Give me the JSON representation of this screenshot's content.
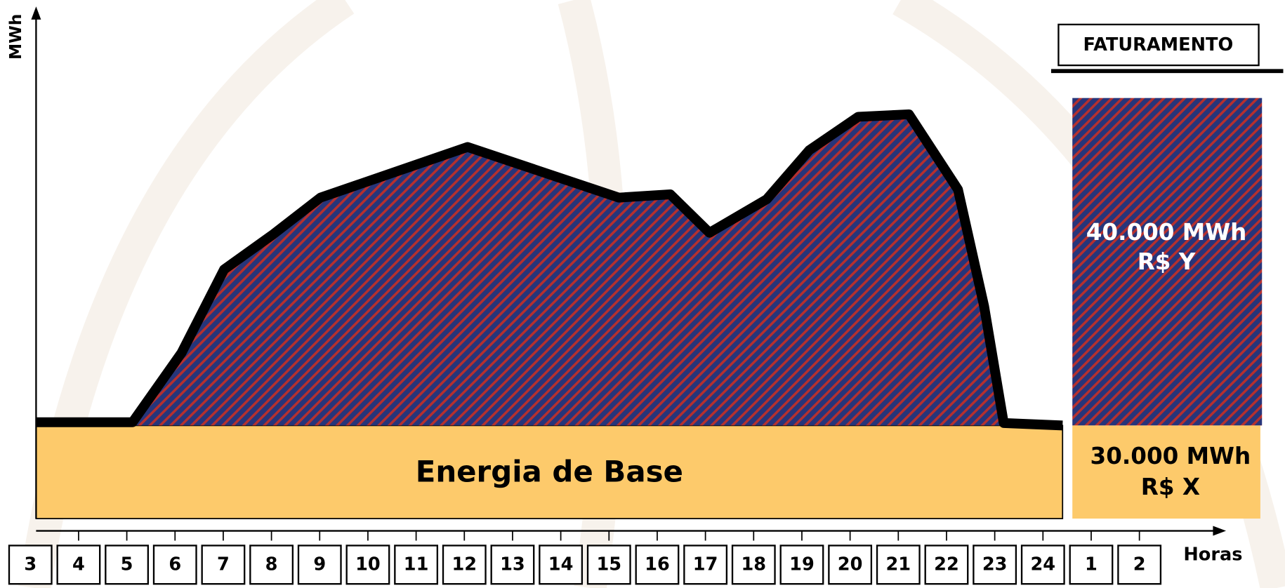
{
  "axis": {
    "y_label": "MWh",
    "x_label": "Horas"
  },
  "hours": [
    "3",
    "4",
    "5",
    "6",
    "7",
    "8",
    "9",
    "10",
    "11",
    "12",
    "13",
    "14",
    "15",
    "16",
    "17",
    "18",
    "19",
    "20",
    "21",
    "22",
    "23",
    "24",
    "1",
    "2"
  ],
  "legend": {
    "title": "FATURAMENTO",
    "peak": {
      "energy": "40.000 MWh",
      "price": "R$ Y"
    },
    "base": {
      "energy": "30.000 MWh",
      "price": "R$ X"
    }
  },
  "base_label": "Energia de Base"
}
